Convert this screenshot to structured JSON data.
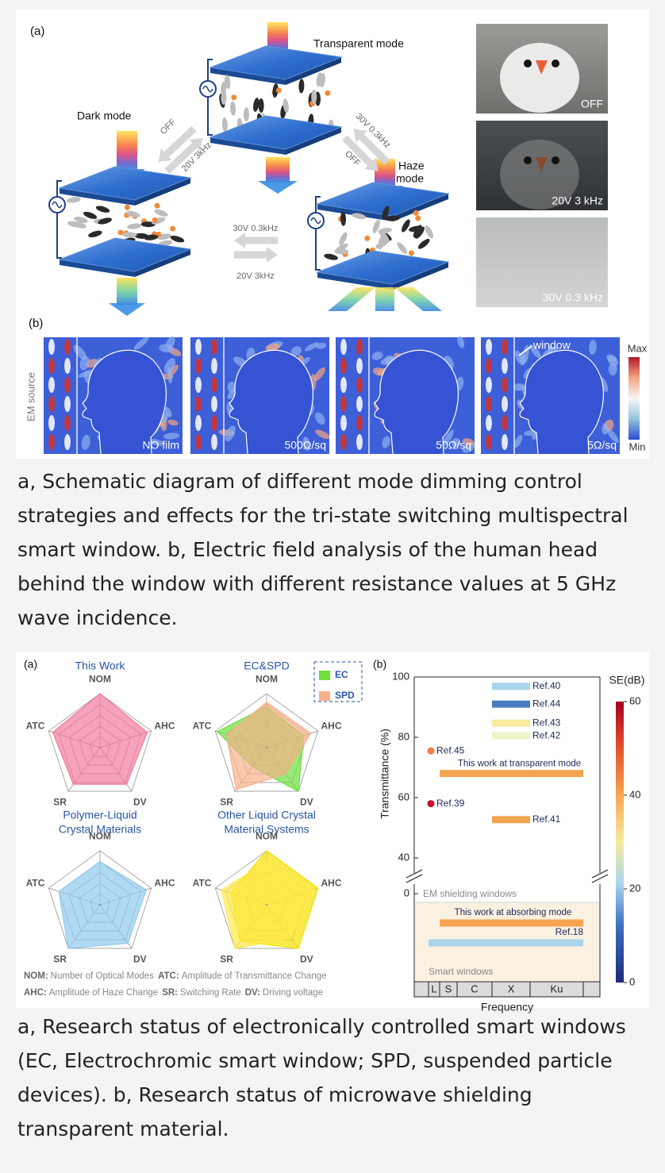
{
  "figure1": {
    "panel_a_label": "(a)",
    "panel_b_label": "(b)",
    "modes": {
      "transparent": "Transparent mode",
      "dark": "Dark mode",
      "haze": [
        "Haze",
        "mode"
      ]
    },
    "switches": {
      "dark_off": "OFF",
      "dark_on": "20V 3kHz",
      "haze_on": "30V 0.3kHz",
      "haze_off": "OFF",
      "dark_to_haze": "30V 0.3kHz",
      "haze_to_dark": "20V 3kHz"
    },
    "photos": [
      "OFF",
      "20V 3 kHz",
      "30V 0.3 kHz"
    ],
    "field": {
      "source_label": "EM source",
      "window_label": "window",
      "panels": [
        "NO film",
        "500Ω/sq",
        "50Ω/sq",
        "5Ω/sq"
      ],
      "max": "Max",
      "min": "Min"
    }
  },
  "caption1": "a, Schematic diagram of different mode dimming control strategies and effects for the tri-state switching multispectral smart window. b, Electric field analysis of the human head behind the window with different resistance values at 5 GHz wave incidence.",
  "figure2": {
    "panel_a_label": "(a)",
    "panel_b_label": "(b)",
    "radar": {
      "axes": [
        "NOM",
        "AHC",
        "DV",
        "SR",
        "ATC"
      ],
      "charts": [
        {
          "title": [
            "This Work"
          ],
          "series": [
            {
              "color": "#f27a9c",
              "values": [
                5,
                4.6,
                4.2,
                4.2,
                4.6
              ]
            }
          ]
        },
        {
          "title": [
            "EC&SPD"
          ],
          "series": [
            {
              "name": "EC",
              "color": "#6de03c",
              "values": [
                3.8,
                3.6,
                5,
                2.2,
                4.8
              ]
            },
            {
              "name": "SPD",
              "color": "#f7b08a",
              "values": [
                4.2,
                4.3,
                3,
                4.8,
                3.9
              ]
            }
          ]
        },
        {
          "title": [
            "Polymer-Liquid",
            "Crystal Materials"
          ],
          "series": [
            {
              "color": "#8ecbee",
              "values": [
                4,
                4.5,
                4.4,
                5,
                4
              ]
            }
          ]
        },
        {
          "title": [
            "Other Liquid Crystal",
            "Material Systems"
          ],
          "series": [
            {
              "color": "#f5e000",
              "values": [
                5,
                5,
                5,
                4.2,
                3.5
              ]
            },
            {
              "color": "#ffe94a",
              "values": [
                4,
                4.6,
                3.8,
                5,
                4.4
              ]
            }
          ]
        }
      ],
      "notes": [
        [
          {
            "abbr": "NOM:",
            "text": "Number of Optical Modes"
          },
          {
            "abbr": "ATC:",
            "text": "Amplitude of Transmittance Change"
          }
        ],
        [
          {
            "abbr": "AHC:",
            "text": "Amplitude of Haze Change"
          },
          {
            "abbr": "SR:",
            "text": "Switching Rate"
          },
          {
            "abbr": "DV:",
            "text": "Driving voltage"
          }
        ]
      ]
    },
    "transmittance": {
      "ylabel": "Transmittance (%)",
      "ylim": [
        35,
        100
      ],
      "yticks": [
        40,
        60,
        80,
        100
      ],
      "lower_tick": 0,
      "xlabel": "Frequency",
      "bands": [
        "L",
        "S",
        "C",
        "X",
        "Ku"
      ],
      "colorbar": {
        "label": "SE(dB)",
        "lim": [
          0,
          60
        ],
        "ticks": [
          0,
          20,
          40,
          60
        ]
      },
      "upper_section": "EM shielding windows",
      "lower_section": "Smart windows",
      "points": [
        {
          "name": "Ref.45",
          "value": 75.5,
          "se": 40,
          "color": "#ef7f45",
          "band": "L"
        },
        {
          "name": "Ref.39",
          "value": 58,
          "se": 55,
          "color": "#c8102e",
          "band": "L"
        }
      ],
      "bars": [
        {
          "name": "Ref.40",
          "value": 96.9,
          "se": 15,
          "color": "#a8d4ec",
          "span": [
            "X",
            "X"
          ]
        },
        {
          "name": "Ref.44",
          "value": 91,
          "se": 8,
          "color": "#4a7dc0",
          "span": [
            "X",
            "X"
          ]
        },
        {
          "name": "Ref.43",
          "value": 84.7,
          "se": 27,
          "color": "#f7eba0",
          "span": [
            "X",
            "X"
          ]
        },
        {
          "name": "Ref.42",
          "value": 80.5,
          "se": 24,
          "color": "#eef3c8",
          "span": [
            "X",
            "X"
          ]
        },
        {
          "name": "This work at transparent mode",
          "value": 68,
          "se": 38,
          "color": "#f5a550",
          "span": [
            "S",
            "Ku"
          ]
        },
        {
          "name": "Ref.41",
          "value": 52.7,
          "se": 38,
          "color": "#f5a550",
          "span": [
            "X",
            "X"
          ]
        }
      ],
      "shielding_bars": [
        {
          "name": "This work at absorbing mode",
          "se": 38,
          "color": "#f5a550",
          "span": [
            "S",
            "Ku"
          ]
        },
        {
          "name": "Ref.18",
          "se": 16,
          "color": "#a8d4ec",
          "span": [
            "L",
            "Ku"
          ]
        }
      ]
    }
  },
  "caption2": "a, Research status of electronically controlled smart windows (EC, Electrochromic smart window; SPD, suspended particle devices). b, Research status of microwave shielding transparent material."
}
